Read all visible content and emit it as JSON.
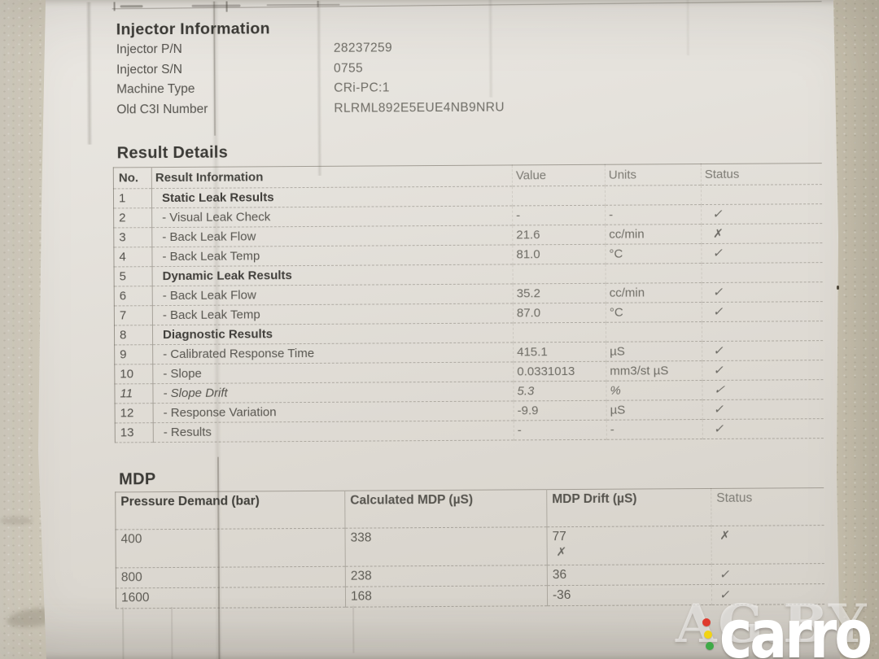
{
  "photo": {
    "paper_color": "#e3e0d9",
    "wall_left_color": "#d5d0c3",
    "wall_right_color": "#c7c1af"
  },
  "injector_information": {
    "title": "Injector Information",
    "fields": [
      {
        "label": "Injector P/N",
        "value": "28237259"
      },
      {
        "label": "Injector S/N",
        "value": "0755"
      },
      {
        "label": "Machine Type",
        "value": "CRi-PC:1"
      },
      {
        "label": "Old C3I Number",
        "value": "RLRML892E5EUE4NB9NRU"
      }
    ]
  },
  "result_details": {
    "title": "Result Details",
    "columns": [
      "No.",
      "Result Information",
      "Value",
      "Units",
      "Status"
    ],
    "rows": [
      {
        "no": "1",
        "name": "Static Leak Results",
        "group": true
      },
      {
        "no": "2",
        "name": "- Visual Leak Check",
        "value": "-",
        "units": "-",
        "status": "pass"
      },
      {
        "no": "3",
        "name": "- Back Leak Flow",
        "value": "21.6",
        "units": "cc/min",
        "status": "fail"
      },
      {
        "no": "4",
        "name": "- Back Leak Temp",
        "value": "81.0",
        "units": "°C",
        "status": "pass"
      },
      {
        "no": "5",
        "name": "Dynamic Leak Results",
        "group": true
      },
      {
        "no": "6",
        "name": "- Back Leak Flow",
        "value": "35.2",
        "units": "cc/min",
        "status": "pass"
      },
      {
        "no": "7",
        "name": "- Back Leak Temp",
        "value": "87.0",
        "units": "°C",
        "status": "pass"
      },
      {
        "no": "8",
        "name": "Diagnostic Results",
        "group": true
      },
      {
        "no": "9",
        "name": "- Calibrated Response Time",
        "value": "415.1",
        "units": "µS",
        "status": "pass"
      },
      {
        "no": "10",
        "name": "- Slope",
        "value": "0.0331013",
        "units": "mm3/st µS",
        "status": "pass"
      },
      {
        "no": "11",
        "name": "- Slope Drift",
        "value": "5.3",
        "units": "%",
        "status": "pass",
        "italic": true
      },
      {
        "no": "12",
        "name": "- Response Variation",
        "value": "-9.9",
        "units": "µS",
        "status": "pass"
      },
      {
        "no": "13",
        "name": "- Results",
        "value": "-",
        "units": "-",
        "status": "pass"
      }
    ]
  },
  "mdp": {
    "title": "MDP",
    "columns": [
      "Pressure Demand (bar)",
      "Calculated MDP (µS)",
      "MDP Drift (µS)",
      "Status"
    ],
    "rows": [
      {
        "pressure": "400",
        "calculated": "338",
        "drift": "77",
        "drift_mark": "fail",
        "status": "fail"
      },
      {
        "pressure": "800",
        "calculated": "238",
        "drift": "36",
        "status": "pass"
      },
      {
        "pressure": "1600",
        "calculated": "168",
        "drift": "-36",
        "status": "pass"
      }
    ]
  },
  "glyphs": {
    "pass": "✓",
    "fail": "✗"
  },
  "watermark": {
    "ghost_text": "AG.BY",
    "logo_text": "carro",
    "dot_colors": [
      "#df3a2e",
      "#f2d414",
      "#3faa47"
    ]
  }
}
